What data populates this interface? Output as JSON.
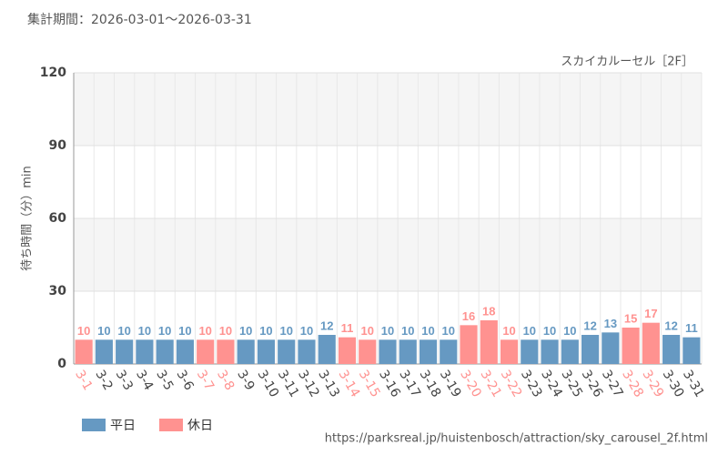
{
  "chart_data": {
    "type": "bar",
    "title": "集計期間：2026-03-01～2026-03-31",
    "subtitle": "スカイカルーセル［2F］",
    "y_label": "待ち時間（分）min",
    "source": "https://parksreal.jp/huistenbosch/attraction/sky_carousel_2f.html",
    "categories": [
      "3-1",
      "3-2",
      "3-3",
      "3-4",
      "3-5",
      "3-6",
      "3-7",
      "3-8",
      "3-9",
      "3-10",
      "3-11",
      "3-12",
      "3-13",
      "3-14",
      "3-15",
      "3-16",
      "3-17",
      "3-18",
      "3-19",
      "3-20",
      "3-21",
      "3-22",
      "3-23",
      "3-24",
      "3-25",
      "3-26",
      "3-27",
      "3-28",
      "3-29",
      "3-30",
      "3-31"
    ],
    "series": [
      {
        "name": "平日",
        "color": "#6699c2",
        "values": [
          null,
          10,
          10,
          10,
          10,
          10,
          null,
          null,
          10,
          10,
          10,
          10,
          12,
          null,
          null,
          10,
          10,
          10,
          10,
          null,
          null,
          null,
          10,
          10,
          10,
          12,
          13,
          null,
          null,
          12,
          11
        ]
      },
      {
        "name": "休日",
        "color": "#ff9290",
        "values": [
          10,
          null,
          null,
          null,
          null,
          null,
          10,
          10,
          null,
          null,
          null,
          null,
          null,
          11,
          10,
          null,
          null,
          null,
          null,
          16,
          18,
          10,
          null,
          null,
          null,
          null,
          null,
          15,
          17,
          null,
          null
        ]
      }
    ],
    "ylim": [
      0,
      120
    ],
    "yticks": [
      0,
      30,
      60,
      90,
      120
    ],
    "grid": true
  }
}
